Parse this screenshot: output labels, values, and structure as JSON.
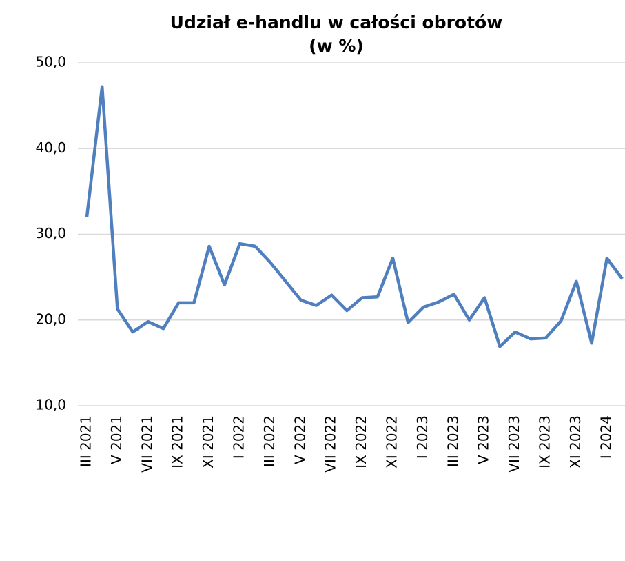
{
  "chart_data": {
    "type": "line",
    "title": [
      "Udział e-handlu w całości obrotów",
      "(w %)"
    ],
    "categories": [
      "III 2021",
      null,
      "V 2021",
      null,
      "VII 2021",
      null,
      "IX 2021",
      null,
      "XI 2021",
      null,
      "I 2022",
      null,
      "III 2022",
      null,
      "V 2022",
      null,
      "VII 2022",
      null,
      "IX 2022",
      null,
      "XI 2022",
      null,
      "I 2023",
      null,
      "III 2023",
      null,
      "V 2023",
      null,
      "VII 2023",
      null,
      "IX 2023",
      null,
      "XI 2023",
      null,
      "I 2024",
      null
    ],
    "series": [
      {
        "name": null,
        "color": "#4f7fbc",
        "values": [
          32.0,
          47.2,
          21.3,
          18.6,
          19.8,
          19.0,
          22.0,
          22.0,
          28.6,
          24.1,
          28.9,
          28.6,
          26.7,
          24.5,
          22.3,
          21.7,
          22.9,
          21.1,
          22.6,
          22.7,
          27.2,
          19.7,
          21.5,
          22.1,
          23.0,
          20.0,
          22.6,
          16.9,
          18.6,
          17.8,
          17.9,
          19.9,
          24.5,
          17.3,
          27.2,
          24.8
        ]
      }
    ],
    "ylim": [
      10,
      50
    ],
    "yticks": [
      {
        "value": 10,
        "label": "10,0"
      },
      {
        "value": 20,
        "label": "20,0"
      },
      {
        "value": 30,
        "label": "30,0"
      },
      {
        "value": 40,
        "label": "40,0"
      },
      {
        "value": 50,
        "label": "50,0"
      }
    ],
    "grid": true
  }
}
